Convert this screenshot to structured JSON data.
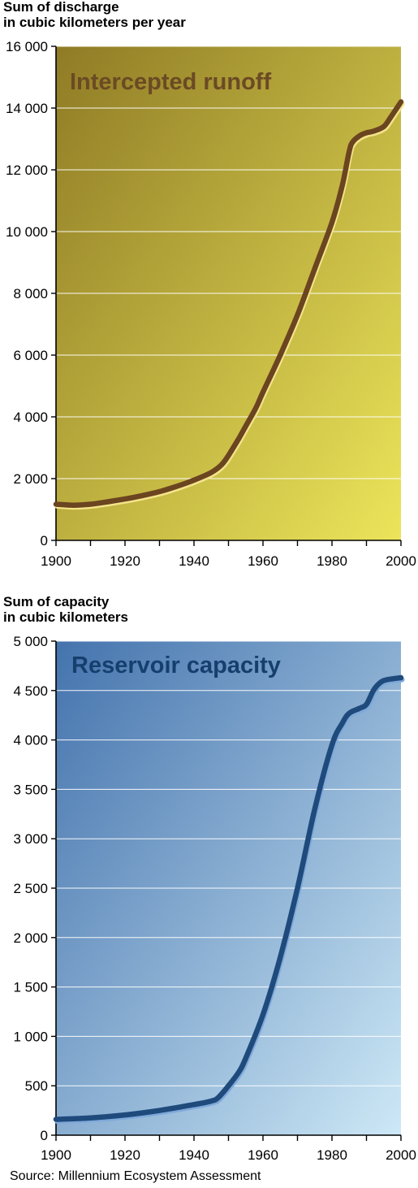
{
  "chart_data": [
    {
      "type": "line",
      "title": "Intercepted runoff",
      "ylabel_line1": "Sum of discharge",
      "ylabel_line2": "in cubic kilometers per year",
      "xlabel": "",
      "xlim": [
        1900,
        2000
      ],
      "ylim": [
        0,
        16000
      ],
      "x_ticks": [
        "1900",
        "1920",
        "1940",
        "1960",
        "1980",
        "2000"
      ],
      "x_tick_values": [
        1900,
        1920,
        1940,
        1960,
        1980,
        2000
      ],
      "y_ticks": [
        "0",
        "2 000",
        "4 000",
        "6 000",
        "8 000",
        "10 000",
        "12 000",
        "14 000",
        "16 000"
      ],
      "y_tick_values": [
        0,
        2000,
        4000,
        6000,
        8000,
        10000,
        12000,
        14000,
        16000
      ],
      "grid": true,
      "series": [
        {
          "x": [
            1900,
            1905,
            1910,
            1915,
            1920,
            1925,
            1930,
            1935,
            1940,
            1945,
            1948,
            1950,
            1953,
            1955,
            1958,
            1960,
            1965,
            1970,
            1975,
            1980,
            1983,
            1985,
            1986,
            1988,
            1990,
            1992,
            1995,
            1997,
            2000
          ],
          "y": [
            1170,
            1140,
            1170,
            1250,
            1340,
            1450,
            1580,
            1750,
            1950,
            2200,
            2450,
            2750,
            3300,
            3700,
            4300,
            4800,
            6000,
            7300,
            8800,
            10300,
            11500,
            12600,
            12900,
            13100,
            13200,
            13250,
            13400,
            13700,
            14200
          ]
        }
      ],
      "colors": {
        "line": "#6b4420",
        "highlight": "#f3e48a",
        "title": "#6b4a24",
        "bg_top_left": "#8f7b25",
        "bg_bottom_right": "#ece55a"
      }
    },
    {
      "type": "line",
      "title": "Reservoir capacity",
      "ylabel_line1": "Sum of capacity",
      "ylabel_line2": "in cubic kilometers",
      "xlabel": "",
      "xlim": [
        1900,
        2000
      ],
      "ylim": [
        0,
        5000
      ],
      "x_ticks": [
        "1900",
        "1920",
        "1940",
        "1960",
        "1980",
        "2000"
      ],
      "x_tick_values": [
        1900,
        1920,
        1940,
        1960,
        1980,
        2000
      ],
      "y_ticks": [
        "0",
        "500",
        "1 000",
        "1 500",
        "2 000",
        "2 500",
        "3 000",
        "3 500",
        "4 000",
        "4 500",
        "5 000"
      ],
      "y_tick_values": [
        0,
        500,
        1000,
        1500,
        2000,
        2500,
        3000,
        3500,
        4000,
        4500,
        5000
      ],
      "grid": true,
      "series": [
        {
          "x": [
            1900,
            1910,
            1920,
            1930,
            1940,
            1945,
            1947,
            1950,
            1953,
            1955,
            1960,
            1965,
            1970,
            1975,
            1980,
            1983,
            1985,
            1988,
            1990,
            1992,
            1994,
            1996,
            2000
          ],
          "y": [
            160,
            175,
            205,
            250,
            310,
            345,
            380,
            500,
            640,
            780,
            1220,
            1800,
            2500,
            3300,
            3950,
            4170,
            4270,
            4320,
            4360,
            4500,
            4580,
            4610,
            4630
          ]
        }
      ],
      "colors": {
        "line": "#1f4a7c",
        "highlight": "#7fa9da",
        "title": "#163f6e",
        "bg_top_left": "#4473ad",
        "bg_bottom_right": "#cde8f6"
      }
    }
  ],
  "source": "Source: Millennium Ecosystem Assessment"
}
